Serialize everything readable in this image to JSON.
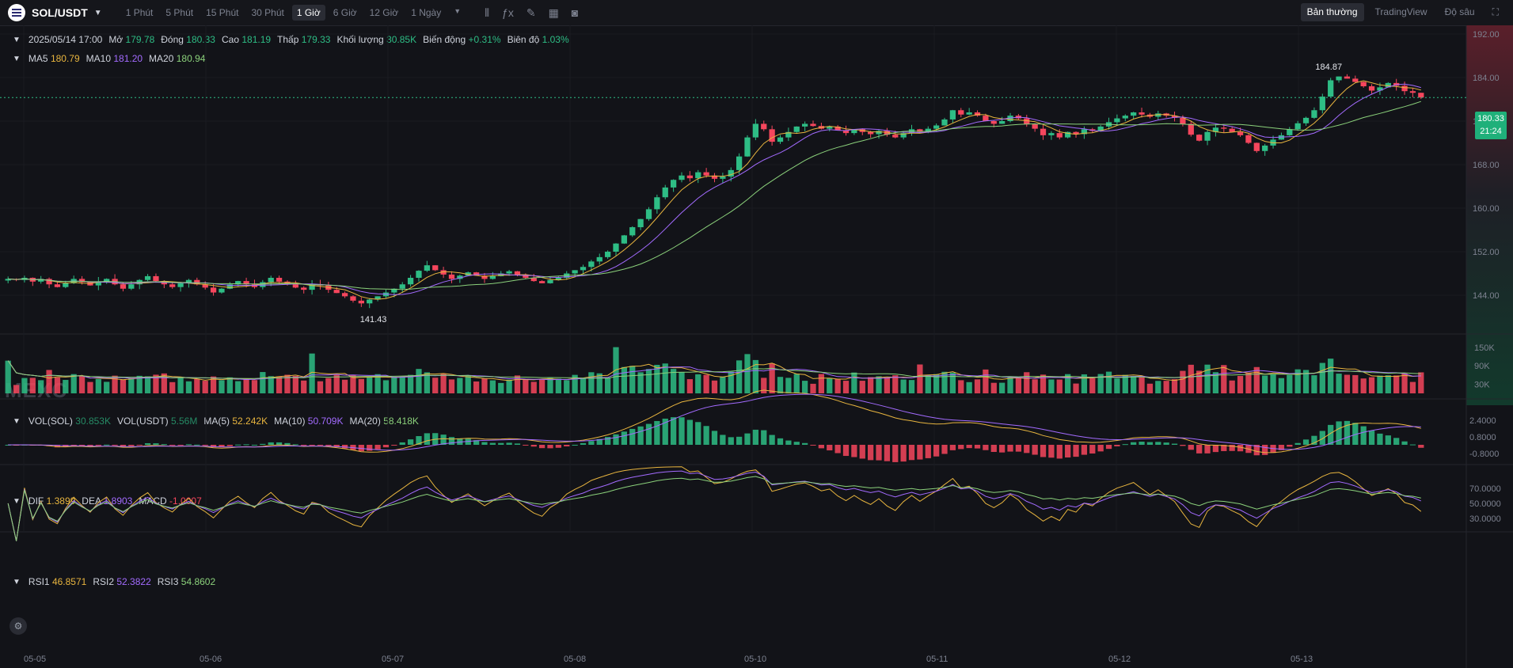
{
  "toolbar": {
    "pair": "SOL/USDT",
    "intervals": [
      "1 Phút",
      "5 Phút",
      "15 Phút",
      "30 Phút",
      "1 Giờ",
      "6 Giờ",
      "12 Giờ",
      "1 Ngày"
    ],
    "active_interval": "1 Giờ",
    "views": [
      "Bản thường",
      "TradingView",
      "Độ sâu"
    ],
    "active_view": "Bản thường"
  },
  "ohlc": {
    "date": "2025/05/14 17:00",
    "open_label": "Mở",
    "open": "179.78",
    "close_label": "Đóng",
    "close": "180.33",
    "high_label": "Cao",
    "high": "181.19",
    "low_label": "Thấp",
    "low": "179.33",
    "volume_label": "Khối lượng",
    "volume": "30.85K",
    "change_label": "Biến động",
    "change": "+0.31%",
    "amp_label": "Biên độ",
    "amp": "1.03%"
  },
  "ma": {
    "ma5_label": "MA5",
    "ma5": "180.79",
    "ma10_label": "MA10",
    "ma10": "181.20",
    "ma20_label": "MA20",
    "ma20": "180.94"
  },
  "vol": {
    "sol_label": "VOL(SOL)",
    "sol": "30.853K",
    "usdt_label": "VOL(USDT)",
    "usdt": "5.56M",
    "ma5_label": "MA(5)",
    "ma5": "52.242K",
    "ma10_label": "MA(10)",
    "ma10": "50.709K",
    "ma20_label": "MA(20)",
    "ma20": "58.418K"
  },
  "macd": {
    "dif_label": "DIF",
    "dif": "1.3899",
    "dea_label": "DEA",
    "dea": "1.8903",
    "macd_label": "MACD",
    "macd": "-1.0007"
  },
  "rsi": {
    "rsi1_label": "RSI1",
    "rsi1": "46.8571",
    "rsi2_label": "RSI2",
    "rsi2": "52.3822",
    "rsi3_label": "RSI3",
    "rsi3": "54.8602"
  },
  "price_axis": [
    "192.00",
    "184.00",
    "176.00",
    "168.00",
    "160.00",
    "152.00",
    "144.00"
  ],
  "vol_axis": [
    "150K",
    "90K",
    "30K"
  ],
  "macd_axis": [
    "2.4000",
    "0.8000",
    "-0.8000"
  ],
  "rsi_axis": [
    "70.0000",
    "50.0000",
    "30.0000"
  ],
  "time_axis": [
    "05-05",
    "05-06",
    "05-07",
    "05-08",
    "05-10",
    "05-11",
    "05-12",
    "05-13"
  ],
  "current_price": "180.33",
  "countdown": "21:24",
  "max_label": "184.87",
  "min_label": "141.43",
  "watermark": "MEXC",
  "colors": {
    "up": "#2ebd85",
    "down": "#f6465d",
    "ma5": "#e8b53f",
    "ma10": "#a36bff",
    "ma20": "#8bd17b"
  },
  "chart_data": {
    "type": "candlestick",
    "price_path": [
      147,
      146.8,
      147.2,
      146.5,
      147,
      146,
      145.5,
      146.2,
      147,
      146.4,
      145.8,
      146.5,
      147,
      146,
      145.2,
      146,
      146.8,
      147.5,
      146.6,
      146,
      145.5,
      146.2,
      146.8,
      146,
      145.4,
      144.5,
      145.2,
      146,
      146.6,
      146,
      145.5,
      146.4,
      147.2,
      146.5,
      146,
      145.4,
      145,
      146,
      145.8,
      145,
      144.4,
      143.8,
      143,
      142.5,
      143.2,
      143.8,
      144.5,
      145.2,
      146,
      147.2,
      148.5,
      149.5,
      148.6,
      147.8,
      147,
      147.6,
      148.2,
      147.6,
      147,
      147.5,
      148,
      148.4,
      147.8,
      147.2,
      146.6,
      146.2,
      146.8,
      147.2,
      148,
      148.6,
      149.2,
      150.2,
      151,
      152,
      153.5,
      155,
      156.5,
      158,
      159.8,
      162,
      163.8,
      165.2,
      166,
      165.5,
      166.6,
      166,
      165.4,
      165.8,
      167,
      169.5,
      173,
      175.5,
      174.5,
      172.2,
      173,
      174,
      175,
      175.5,
      175.1,
      174.6,
      175,
      174.3,
      173.8,
      174.5,
      174,
      173.6,
      174.2,
      173.5,
      173,
      173.8,
      174.5,
      174,
      174.6,
      175.2,
      176.3,
      178,
      177.2,
      177.6,
      177,
      176,
      175.5,
      176,
      177,
      176.5,
      175.4,
      174.6,
      173.4,
      173.8,
      173,
      174,
      173.6,
      174.5,
      174.2,
      175,
      175.8,
      176.5,
      177,
      177.6,
      177.2,
      176.8,
      177.4,
      177,
      176.6,
      175.5,
      173.5,
      172.4,
      174,
      174.8,
      174.6,
      174,
      173.4,
      172,
      170.5,
      171.5,
      172.6,
      173.4,
      174.5,
      175.6,
      176.6,
      178,
      180.5,
      183.5,
      184.2,
      183.8,
      183.2,
      182.4,
      181.6,
      182.2,
      183,
      182.5,
      181.5,
      181.2,
      180.33
    ]
  }
}
